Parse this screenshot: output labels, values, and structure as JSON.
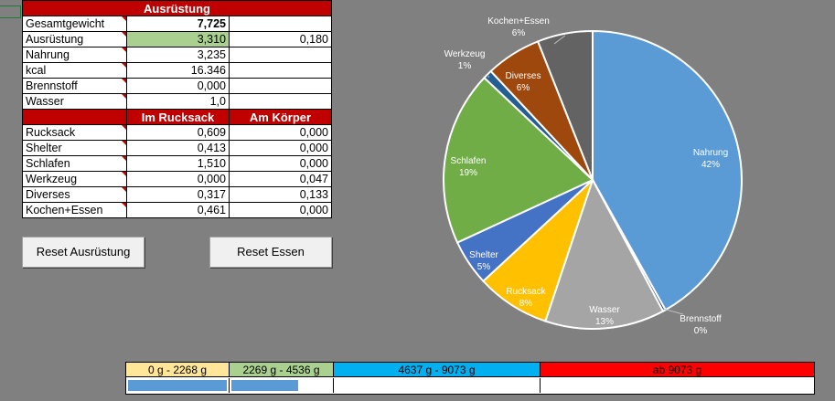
{
  "table": {
    "title": "Ausrüstung",
    "rows_top": [
      {
        "label": "Gesamtgewicht",
        "v1": "7,725",
        "v2": ""
      },
      {
        "label": "Ausrüstung",
        "v1": "3,310",
        "v2": "0,180"
      },
      {
        "label": "Nahrung",
        "v1": "3,235",
        "v2": ""
      },
      {
        "label": "kcal",
        "v1": "16.346",
        "v2": ""
      },
      {
        "label": "Brennstoff",
        "v1": "0,000",
        "v2": ""
      },
      {
        "label": "Wasser",
        "v1": "1,0",
        "v2": ""
      }
    ],
    "col_headers": [
      "Im Rucksack",
      "Am Körper"
    ],
    "rows_bottom": [
      {
        "label": "Rucksack",
        "v1": "0,609",
        "v2": "0,000"
      },
      {
        "label": "Shelter",
        "v1": "0,413",
        "v2": "0,000"
      },
      {
        "label": "Schlafen",
        "v1": "1,510",
        "v2": "0,000"
      },
      {
        "label": "Werkzeug",
        "v1": "0,000",
        "v2": "0,047"
      },
      {
        "label": "Diverses",
        "v1": "0,317",
        "v2": "0,133"
      },
      {
        "label": "Kochen+Essen",
        "v1": "0,461",
        "v2": "0,000"
      }
    ]
  },
  "buttons": {
    "reset_gear": "Reset Ausrüstung",
    "reset_food": "Reset Essen"
  },
  "chart_data": {
    "type": "pie",
    "slices": [
      {
        "name": "Nahrung",
        "pct": 42,
        "label": "42%",
        "color": "#5b9bd5"
      },
      {
        "name": "Brennstoff",
        "pct": 0,
        "label": "0%",
        "color": "#264478"
      },
      {
        "name": "Wasser",
        "pct": 13,
        "label": "13%",
        "color": "#a5a5a5"
      },
      {
        "name": "Rucksack",
        "pct": 8,
        "label": "8%",
        "color": "#ffc000"
      },
      {
        "name": "Shelter",
        "pct": 5,
        "label": "5%",
        "color": "#4472c4"
      },
      {
        "name": "Schlafen",
        "pct": 19,
        "label": "19%",
        "color": "#70ad47"
      },
      {
        "name": "Werkzeug",
        "pct": 1,
        "label": "1%",
        "color": "#255e91"
      },
      {
        "name": "Diverses",
        "pct": 6,
        "label": "6%",
        "color": "#9e480e"
      },
      {
        "name": "Kochen+Essen",
        "pct": 6,
        "label": "6%",
        "color": "#636363"
      }
    ]
  },
  "legend": {
    "ranges": [
      {
        "label": "0 g - 2268 g",
        "color": "#ffe699"
      },
      {
        "label": "2269 g - 4536 g",
        "color": "#a9d08e"
      },
      {
        "label": "4637 g - 9073 g",
        "color": "#00b0f0"
      },
      {
        "label": "ab 9073 g",
        "color": "#ff0000"
      }
    ],
    "progress_fill_fraction": 0.83
  }
}
